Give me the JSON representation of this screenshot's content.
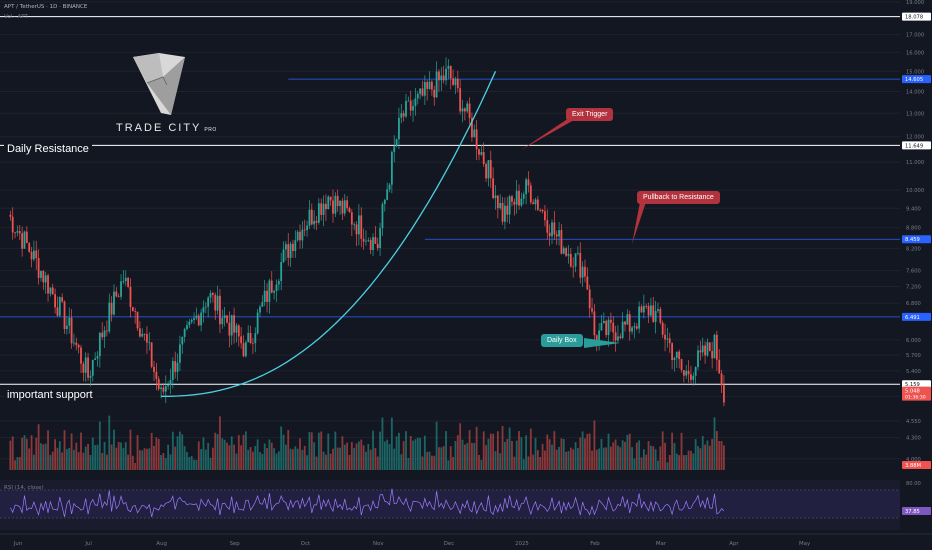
{
  "header": {
    "symbol_line": "APT / TetherUS · 1D · BINANCE",
    "sub_line": "Vol · APT"
  },
  "logo": {
    "name": "TRADE CITY",
    "suffix": "PRO"
  },
  "annotations": {
    "daily_resistance": "Daily Resistance",
    "important_support": "important support",
    "exit_trigger": "Exit Trigger",
    "pullback": "Pullback to Resistance",
    "daily_box": "Daily Box"
  },
  "colors": {
    "background": "#131722",
    "up": "#26a69a",
    "down": "#ef5350",
    "curve": "#4dd0e1",
    "blue_line": "#2962ff",
    "exit_trigger": "#b2323d",
    "pullback": "#b2323d",
    "daily_box": "#2a9d9a"
  },
  "rsi": {
    "label": "RSI (14, close)",
    "value_label": "37.85"
  },
  "chart_data": {
    "type": "candlestick",
    "price_axis": {
      "min": 3.85,
      "max": 19.0,
      "scale": "log",
      "ticks": [
        "19.000",
        "17.000",
        "16.000",
        "15.000",
        "14.000",
        "13.000",
        "12.000",
        "11.000",
        "10.000",
        "9.400",
        "8.800",
        "8.200",
        "7.600",
        "7.200",
        "6.800",
        "6.000",
        "5.700",
        "5.400",
        "4.950",
        "4.550",
        "4.300",
        "4.000"
      ]
    },
    "time_axis": {
      "ticks": [
        "Jun",
        "Jul",
        "Aug",
        "Sep",
        "Oct",
        "Nov",
        "Dec",
        "2025",
        "Feb",
        "Mar",
        "Apr",
        "May"
      ]
    },
    "levels": [
      {
        "price": 18.078,
        "label": "18.078",
        "color": "#ffffff"
      },
      {
        "price": 14.605,
        "label": "14.605",
        "color": "#2962ff"
      },
      {
        "price": 11.649,
        "label": "11.649",
        "color": "#ffffff"
      },
      {
        "price": 8.459,
        "label": "8.459",
        "color": "#2962ff"
      },
      {
        "price": 6.491,
        "label": "6.491",
        "color": "#2962ff"
      },
      {
        "price": 5.159,
        "label": "5.159",
        "color": "#ffffff"
      }
    ],
    "last_price": {
      "label": "5.048",
      "countdown": "01:36:30"
    },
    "volume_label": "3.88M",
    "rsi_levels": [
      "80.00"
    ],
    "key_points": [
      {
        "date": "Jun 1",
        "close": 9.2
      },
      {
        "date": "Jul 5",
        "close": 5.3
      },
      {
        "date": "Jul 20",
        "close": 7.4
      },
      {
        "date": "Aug 5",
        "close": 4.95
      },
      {
        "date": "Aug 25",
        "close": 7.0
      },
      {
        "date": "Sep 10",
        "close": 5.8
      },
      {
        "date": "Oct 1",
        "close": 8.6
      },
      {
        "date": "Oct 15",
        "close": 9.8
      },
      {
        "date": "Nov 5",
        "close": 8.3
      },
      {
        "date": "Nov 15",
        "close": 12.8
      },
      {
        "date": "Dec 5",
        "close": 14.9
      },
      {
        "date": "Dec 18",
        "close": 11.6
      },
      {
        "date": "Dec 28",
        "close": 9.2
      },
      {
        "date": "Jan 8",
        "close": 10.1
      },
      {
        "date": "Jan 20",
        "close": 8.5
      },
      {
        "date": "Feb 1",
        "close": 7.6
      },
      {
        "date": "Feb 5",
        "close": 6.1
      },
      {
        "date": "Feb 20",
        "close": 6.3
      },
      {
        "date": "Mar 1",
        "close": 6.7
      },
      {
        "date": "Mar 15",
        "close": 5.3
      },
      {
        "date": "Mar 28",
        "close": 5.9
      },
      {
        "date": "Apr 1",
        "close": 5.05
      }
    ]
  }
}
